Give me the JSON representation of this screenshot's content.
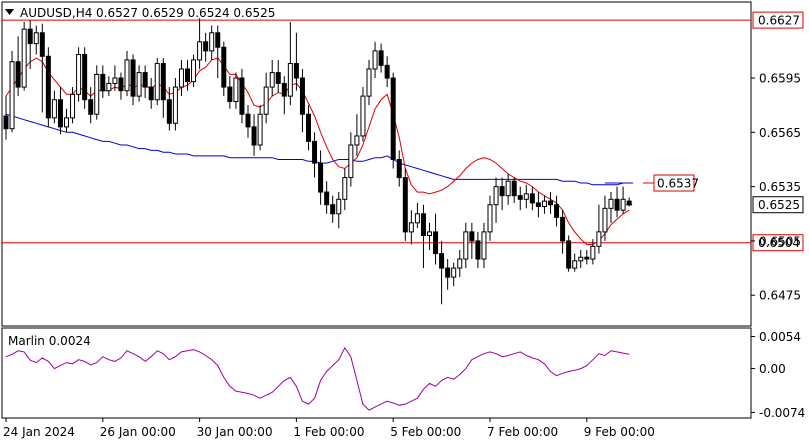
{
  "chart_data": {
    "type": "candlestick",
    "symbol_label": "AUDUSD,H4",
    "ohlc_label": "0.6527 0.6529 0.6524 0.6525",
    "price_range": [
      0.6458,
      0.6637
    ],
    "price_ticks": [
      "0.6595",
      "0.6565",
      "0.6535",
      "0.6505",
      "0.6475"
    ],
    "price_tick_values": [
      0.6595,
      0.6565,
      0.6535,
      0.6505,
      0.6475
    ],
    "time_labels": [
      "24 Jan 2024",
      "26 Jan 00:00",
      "30 Jan 00:00",
      "1 Feb 00:00",
      "5 Feb 00:00",
      "7 Feb 00:00",
      "9 Feb 00:00"
    ],
    "time_label_bars": [
      0,
      16,
      32,
      48,
      64,
      80,
      96
    ],
    "hlines": [
      {
        "label": "0.6627",
        "value": 0.6627,
        "color": "#dd0000"
      },
      {
        "label": "0.6504",
        "value": 0.6504,
        "color": "#dd0000"
      }
    ],
    "level_marker": {
      "label": "0.6537",
      "value": 0.6537,
      "color": "#dd0000"
    },
    "current_price": {
      "label": "0.6525",
      "value": 0.6525
    },
    "candles": [
      [
        0.6574,
        0.6567,
        0.6585,
        0.6561
      ],
      [
        0.6567,
        0.6604,
        0.661,
        0.6565
      ],
      [
        0.6604,
        0.659,
        0.6618,
        0.6585
      ],
      [
        0.659,
        0.6622,
        0.6626,
        0.6588
      ],
      [
        0.6622,
        0.6614,
        0.6627,
        0.66
      ],
      [
        0.6614,
        0.662,
        0.6624,
        0.6608
      ],
      [
        0.662,
        0.6607,
        0.6625,
        0.6576
      ],
      [
        0.6607,
        0.6573,
        0.6612,
        0.6568
      ],
      [
        0.6573,
        0.6583,
        0.6588,
        0.657
      ],
      [
        0.6583,
        0.6568,
        0.659,
        0.6564
      ],
      [
        0.6568,
        0.6573,
        0.6578,
        0.6565
      ],
      [
        0.6573,
        0.6586,
        0.659,
        0.657
      ],
      [
        0.6586,
        0.6608,
        0.6612,
        0.6582
      ],
      [
        0.6608,
        0.6583,
        0.6612,
        0.6578
      ],
      [
        0.6583,
        0.6575,
        0.659,
        0.657
      ],
      [
        0.6575,
        0.6597,
        0.6602,
        0.6572
      ],
      [
        0.6597,
        0.6588,
        0.6602,
        0.6584
      ],
      [
        0.6588,
        0.6592,
        0.6596,
        0.6585
      ],
      [
        0.6592,
        0.6595,
        0.6602,
        0.6588
      ],
      [
        0.6595,
        0.6588,
        0.6598,
        0.6583
      ],
      [
        0.6588,
        0.6605,
        0.661,
        0.6585
      ],
      [
        0.6605,
        0.6585,
        0.6608,
        0.658
      ],
      [
        0.6585,
        0.6598,
        0.6602,
        0.6582
      ],
      [
        0.6598,
        0.659,
        0.6602,
        0.6584
      ],
      [
        0.659,
        0.6583,
        0.6595,
        0.6578
      ],
      [
        0.6583,
        0.6603,
        0.6606,
        0.658
      ],
      [
        0.6603,
        0.6583,
        0.6606,
        0.6573
      ],
      [
        0.6583,
        0.657,
        0.659,
        0.6566
      ],
      [
        0.657,
        0.659,
        0.6595,
        0.6566
      ],
      [
        0.659,
        0.66,
        0.6605,
        0.6585
      ],
      [
        0.66,
        0.6593,
        0.6605,
        0.6588
      ],
      [
        0.6593,
        0.6605,
        0.6608,
        0.659
      ],
      [
        0.6605,
        0.6615,
        0.6628,
        0.66
      ],
      [
        0.6615,
        0.661,
        0.662,
        0.6604
      ],
      [
        0.661,
        0.662,
        0.6624,
        0.6605
      ],
      [
        0.662,
        0.6612,
        0.6624,
        0.6595
      ],
      [
        0.6612,
        0.659,
        0.6615,
        0.6585
      ],
      [
        0.659,
        0.6582,
        0.6596,
        0.6578
      ],
      [
        0.6582,
        0.6595,
        0.6598,
        0.6578
      ],
      [
        0.6595,
        0.6575,
        0.66,
        0.657
      ],
      [
        0.6575,
        0.6568,
        0.658,
        0.6562
      ],
      [
        0.6568,
        0.6558,
        0.6575,
        0.6552
      ],
      [
        0.6558,
        0.6575,
        0.658,
        0.6555
      ],
      [
        0.6575,
        0.659,
        0.6598,
        0.657
      ],
      [
        0.659,
        0.6598,
        0.6605,
        0.6585
      ],
      [
        0.6598,
        0.6592,
        0.6605,
        0.6587
      ],
      [
        0.6592,
        0.6585,
        0.6596,
        0.6575
      ],
      [
        0.6585,
        0.6603,
        0.6626,
        0.658
      ],
      [
        0.6603,
        0.6595,
        0.662,
        0.6588
      ],
      [
        0.6595,
        0.6575,
        0.66,
        0.6565
      ],
      [
        0.6575,
        0.656,
        0.658,
        0.6555
      ],
      [
        0.656,
        0.6548,
        0.6565,
        0.654
      ],
      [
        0.6548,
        0.6532,
        0.6555,
        0.6525
      ],
      [
        0.6532,
        0.6525,
        0.6538,
        0.652
      ],
      [
        0.6525,
        0.652,
        0.653,
        0.6515
      ],
      [
        0.652,
        0.6528,
        0.6532,
        0.6512
      ],
      [
        0.6528,
        0.654,
        0.6545,
        0.6522
      ],
      [
        0.654,
        0.6558,
        0.6565,
        0.6535
      ],
      [
        0.6558,
        0.6563,
        0.6575,
        0.6552
      ],
      [
        0.6563,
        0.6585,
        0.659,
        0.656
      ],
      [
        0.6585,
        0.66,
        0.6605,
        0.658
      ],
      [
        0.66,
        0.661,
        0.6615,
        0.6595
      ],
      [
        0.661,
        0.6602,
        0.6614,
        0.6598
      ],
      [
        0.6602,
        0.6595,
        0.6607,
        0.659
      ],
      [
        0.6595,
        0.655,
        0.6598,
        0.6545
      ],
      [
        0.655,
        0.654,
        0.6555,
        0.6535
      ],
      [
        0.654,
        0.651,
        0.6545,
        0.6505
      ],
      [
        0.651,
        0.6515,
        0.6522,
        0.6503
      ],
      [
        0.6515,
        0.652,
        0.6526,
        0.6512
      ],
      [
        0.652,
        0.6508,
        0.6525,
        0.649
      ],
      [
        0.6508,
        0.651,
        0.6515,
        0.65
      ],
      [
        0.651,
        0.6498,
        0.652,
        0.6492
      ],
      [
        0.6498,
        0.649,
        0.6505,
        0.647
      ],
      [
        0.649,
        0.6485,
        0.6495,
        0.6478
      ],
      [
        0.6485,
        0.649,
        0.6493,
        0.648
      ],
      [
        0.649,
        0.6495,
        0.65,
        0.6485
      ],
      [
        0.6495,
        0.651,
        0.6515,
        0.649
      ],
      [
        0.651,
        0.6505,
        0.6515,
        0.6495
      ],
      [
        0.6505,
        0.6495,
        0.651,
        0.649
      ],
      [
        0.6495,
        0.651,
        0.6515,
        0.649
      ],
      [
        0.651,
        0.6525,
        0.653,
        0.6505
      ],
      [
        0.6525,
        0.6535,
        0.654,
        0.6515
      ],
      [
        0.6535,
        0.653,
        0.654,
        0.6522
      ],
      [
        0.653,
        0.6538,
        0.6542,
        0.6525
      ],
      [
        0.6538,
        0.653,
        0.654,
        0.6526
      ],
      [
        0.653,
        0.6528,
        0.6535,
        0.6522
      ],
      [
        0.6528,
        0.6531,
        0.6536,
        0.6523
      ],
      [
        0.6531,
        0.6526,
        0.6535,
        0.6522
      ],
      [
        0.6526,
        0.6524,
        0.6532,
        0.6518
      ],
      [
        0.6524,
        0.6527,
        0.653,
        0.652
      ],
      [
        0.6527,
        0.6525,
        0.6532,
        0.652
      ],
      [
        0.6525,
        0.6518,
        0.653,
        0.6513
      ],
      [
        0.6518,
        0.6505,
        0.6522,
        0.6498
      ],
      [
        0.6505,
        0.649,
        0.6508,
        0.6488
      ],
      [
        0.649,
        0.6494,
        0.6498,
        0.6488
      ],
      [
        0.6494,
        0.6496,
        0.65,
        0.649
      ],
      [
        0.6496,
        0.6495,
        0.65,
        0.6492
      ],
      [
        0.6495,
        0.6502,
        0.6506,
        0.6492
      ],
      [
        0.6502,
        0.651,
        0.6525,
        0.6498
      ],
      [
        0.651,
        0.6523,
        0.653,
        0.6505
      ],
      [
        0.6523,
        0.6528,
        0.6532,
        0.6515
      ],
      [
        0.6528,
        0.6522,
        0.6535,
        0.6518
      ],
      [
        0.6522,
        0.6528,
        0.6535,
        0.652
      ],
      [
        0.6527,
        0.6525,
        0.6529,
        0.6524
      ]
    ],
    "ema_red": [
      0.6585,
      0.659,
      0.6595,
      0.66,
      0.6604,
      0.6606,
      0.6604,
      0.6598,
      0.6594,
      0.659,
      0.6586,
      0.6586,
      0.659,
      0.6588,
      0.6585,
      0.6588,
      0.6588,
      0.6588,
      0.659,
      0.6589,
      0.6592,
      0.659,
      0.6591,
      0.6591,
      0.6589,
      0.6592,
      0.659,
      0.6586,
      0.6587,
      0.659,
      0.6591,
      0.6594,
      0.6599,
      0.6601,
      0.6605,
      0.6606,
      0.6602,
      0.6597,
      0.6597,
      0.6592,
      0.6587,
      0.658,
      0.6579,
      0.6581,
      0.6585,
      0.6587,
      0.6586,
      0.6591,
      0.6592,
      0.6588,
      0.6581,
      0.6574,
      0.6565,
      0.6557,
      0.655,
      0.6546,
      0.6545,
      0.6548,
      0.6551,
      0.6558,
      0.6568,
      0.6578,
      0.6583,
      0.6586,
      0.6575,
      0.6562,
      0.6545,
      0.6536,
      0.6532,
      0.6532,
      0.6531,
      0.6532,
      0.6533,
      0.6535,
      0.6538,
      0.6541,
      0.6545,
      0.6548,
      0.655,
      0.6551,
      0.655,
      0.6548,
      0.6545,
      0.6542,
      0.654,
      0.6538,
      0.6537,
      0.6535,
      0.6532,
      0.653,
      0.6528,
      0.6526,
      0.6522,
      0.6515,
      0.651,
      0.6506,
      0.6503,
      0.6503,
      0.6505,
      0.6509,
      0.6514,
      0.6517,
      0.652,
      0.6522
    ],
    "sma_blue": [
      0.6575,
      0.6574,
      0.6573,
      0.6572,
      0.6571,
      0.657,
      0.6569,
      0.6568,
      0.6567,
      0.6566,
      0.6565,
      0.6565,
      0.6564,
      0.6563,
      0.6562,
      0.6561,
      0.656,
      0.656,
      0.6559,
      0.6558,
      0.6558,
      0.6557,
      0.6556,
      0.6556,
      0.6555,
      0.6555,
      0.6554,
      0.6554,
      0.6553,
      0.6553,
      0.6553,
      0.6552,
      0.6552,
      0.6552,
      0.6552,
      0.6552,
      0.6552,
      0.6551,
      0.6551,
      0.6551,
      0.6551,
      0.6551,
      0.6551,
      0.6551,
      0.6551,
      0.655,
      0.655,
      0.655,
      0.655,
      0.655,
      0.6549,
      0.6549,
      0.6548,
      0.6548,
      0.6549,
      0.655,
      0.655,
      0.655,
      0.6549,
      0.6549,
      0.655,
      0.6551,
      0.6551,
      0.6552,
      0.655,
      0.6548,
      0.6547,
      0.6546,
      0.6545,
      0.6544,
      0.6543,
      0.6542,
      0.6541,
      0.654,
      0.6539,
      0.6539,
      0.6539,
      0.6539,
      0.6539,
      0.6539,
      0.6539,
      0.6539,
      0.6539,
      0.6539,
      0.6539,
      0.6539,
      0.6539,
      0.6539,
      0.6539,
      0.6539,
      0.6539,
      0.6539,
      0.6538,
      0.6538,
      0.6538,
      0.6537,
      0.6537,
      0.6536,
      0.6536,
      0.6536,
      0.6536,
      0.6536,
      0.6537,
      0.6537
    ],
    "oscillator": {
      "label": "Marlin 0.0024",
      "range": [
        -0.008,
        0.0065
      ],
      "ticks": [
        "0.0054",
        "0.00",
        "-0.0074"
      ],
      "tick_values": [
        0.0054,
        0.0,
        -0.0074
      ],
      "values": [
        0.002,
        0.0024,
        0.003,
        0.0028,
        0.0014,
        0.001,
        0.0018,
        0.0012,
        0.0,
        0.0005,
        0.001,
        0.0008,
        0.0015,
        0.0012,
        0.0006,
        0.001,
        0.002,
        0.0015,
        0.0012,
        0.0018,
        0.003,
        0.0025,
        0.002,
        0.0012,
        0.002,
        0.003,
        0.0025,
        0.0015,
        0.002,
        0.0028,
        0.003,
        0.0032,
        0.0028,
        0.0022,
        0.0015,
        0.0005,
        -0.0015,
        -0.003,
        -0.0038,
        -0.004,
        -0.0042,
        -0.0045,
        -0.005,
        -0.0045,
        -0.004,
        -0.003,
        -0.002,
        -0.0015,
        -0.003,
        -0.0055,
        -0.006,
        -0.005,
        -0.002,
        -0.0005,
        0.0005,
        0.0015,
        0.0035,
        0.002,
        -0.002,
        -0.006,
        -0.007,
        -0.0065,
        -0.006,
        -0.0055,
        -0.0058,
        -0.0062,
        -0.006,
        -0.0055,
        -0.005,
        -0.0035,
        -0.0025,
        -0.003,
        -0.002,
        -0.0015,
        -0.0018,
        -0.001,
        0.0,
        0.0015,
        0.002,
        0.0025,
        0.0028,
        0.0025,
        0.002,
        0.0022,
        0.0025,
        0.0028,
        0.0022,
        0.0018,
        0.0015,
        0.0008,
        -0.0005,
        -0.0012,
        -0.0008,
        -0.0005,
        -0.0003,
        0.0,
        0.0005,
        0.0015,
        0.0025,
        0.0022,
        0.003,
        0.0028,
        0.0026,
        0.0024
      ]
    }
  }
}
